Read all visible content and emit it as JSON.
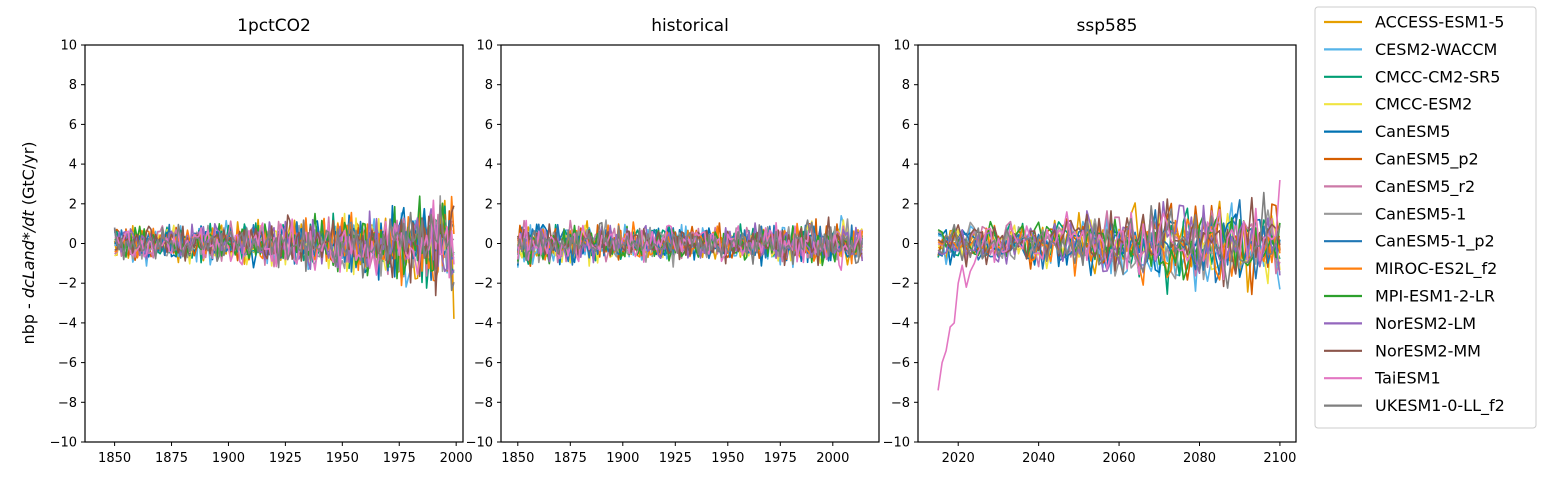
{
  "figure": {
    "ylabel_plain": "nbp - ",
    "ylabel_math": "dcLand*/dt",
    "ylabel_unit": " (GtC/yr)"
  },
  "legend": {
    "placement": "right",
    "models": [
      {
        "name": "ACCESS-ESM1-5",
        "color": "#E69F00"
      },
      {
        "name": "CESM2-WACCM",
        "color": "#56B4E9"
      },
      {
        "name": "CMCC-CM2-SR5",
        "color": "#009E73"
      },
      {
        "name": "CMCC-ESM2",
        "color": "#F0E442"
      },
      {
        "name": "CanESM5",
        "color": "#0072B2"
      },
      {
        "name": "CanESM5_p2",
        "color": "#D55E00"
      },
      {
        "name": "CanESM5_r2",
        "color": "#CC79A7"
      },
      {
        "name": "CanESM5-1",
        "color": "#999999"
      },
      {
        "name": "CanESM5-1_p2",
        "color": "#1F77B4"
      },
      {
        "name": "MIROC-ES2L_f2",
        "color": "#FF7F0E"
      },
      {
        "name": "MPI-ESM1-2-LR",
        "color": "#2CA02C"
      },
      {
        "name": "NorESM2-LM",
        "color": "#9467BD"
      },
      {
        "name": "NorESM2-MM",
        "color": "#8C564B"
      },
      {
        "name": "TaiESM1",
        "color": "#E377C2"
      },
      {
        "name": "UKESM1-0-LL_f2",
        "color": "#7F7F7F"
      }
    ]
  },
  "chart_data": [
    {
      "type": "line",
      "title": "1pctCO2",
      "xlim": [
        1837,
        2003
      ],
      "ylim": [
        -10,
        10
      ],
      "xticks": [
        1850,
        1875,
        1900,
        1925,
        1950,
        1975,
        2000
      ],
      "yticks": [
        -10,
        -8,
        -6,
        -4,
        -2,
        0,
        2,
        4,
        6,
        8,
        10
      ],
      "grid": false,
      "x": {
        "start": 1850,
        "end": 1999,
        "step": 1
      },
      "envelope": [
        {
          "x": 1850,
          "low": -2.0,
          "high": 0.8
        },
        {
          "x": 1875,
          "low": -1.2,
          "high": 1.3
        },
        {
          "x": 1900,
          "low": -1.4,
          "high": 1.4
        },
        {
          "x": 1925,
          "low": -2.0,
          "high": 1.5
        },
        {
          "x": 1950,
          "low": -2.2,
          "high": 2.0
        },
        {
          "x": 1975,
          "low": -3.2,
          "high": 2.4
        },
        {
          "x": 1999,
          "low": -3.8,
          "high": 2.7
        }
      ]
    },
    {
      "type": "line",
      "title": "historical",
      "xlim": [
        1842,
        2022
      ],
      "ylim": [
        -10,
        10
      ],
      "xticks": [
        1850,
        1875,
        1900,
        1925,
        1950,
        1975,
        2000
      ],
      "yticks": [
        -10,
        -8,
        -6,
        -4,
        -2,
        0,
        2,
        4,
        6,
        8,
        10
      ],
      "grid": false,
      "x": {
        "start": 1850,
        "end": 2014,
        "step": 1
      },
      "envelope": [
        {
          "x": 1850,
          "low": -1.3,
          "high": 1.6
        },
        {
          "x": 1900,
          "low": -1.3,
          "high": 1.4
        },
        {
          "x": 1950,
          "low": -1.4,
          "high": 1.0
        },
        {
          "x": 2014,
          "low": -1.6,
          "high": 1.9
        }
      ]
    },
    {
      "type": "line",
      "title": "ssp585",
      "xlim": [
        2010,
        2104
      ],
      "ylim": [
        -10,
        10
      ],
      "xticks": [
        2020,
        2040,
        2060,
        2080,
        2100
      ],
      "yticks": [
        -10,
        -8,
        -6,
        -4,
        -2,
        0,
        2,
        4,
        6,
        8,
        10
      ],
      "grid": false,
      "x": {
        "start": 2015,
        "end": 2100,
        "step": 1
      },
      "envelope": [
        {
          "x": 2015,
          "low": -1.0,
          "high": 1.7
        },
        {
          "x": 2040,
          "low": -1.6,
          "high": 1.6
        },
        {
          "x": 2060,
          "low": -3.4,
          "high": 2.0
        },
        {
          "x": 2080,
          "low": -3.0,
          "high": 2.8
        },
        {
          "x": 2100,
          "low": -3.4,
          "high": 3.2
        }
      ],
      "taiesm1_spinup": [
        {
          "x": 2015,
          "y": -7.4
        },
        {
          "x": 2016,
          "y": -6.0
        },
        {
          "x": 2017,
          "y": -5.4
        },
        {
          "x": 2018,
          "y": -4.2
        },
        {
          "x": 2019,
          "y": -4.0
        },
        {
          "x": 2020,
          "y": -2.0
        },
        {
          "x": 2021,
          "y": -1.1
        },
        {
          "x": 2022,
          "y": -2.2
        },
        {
          "x": 2023,
          "y": -1.4
        },
        {
          "x": 2024,
          "y": -1.0
        },
        {
          "x": 2025,
          "y": -0.4
        }
      ]
    }
  ]
}
